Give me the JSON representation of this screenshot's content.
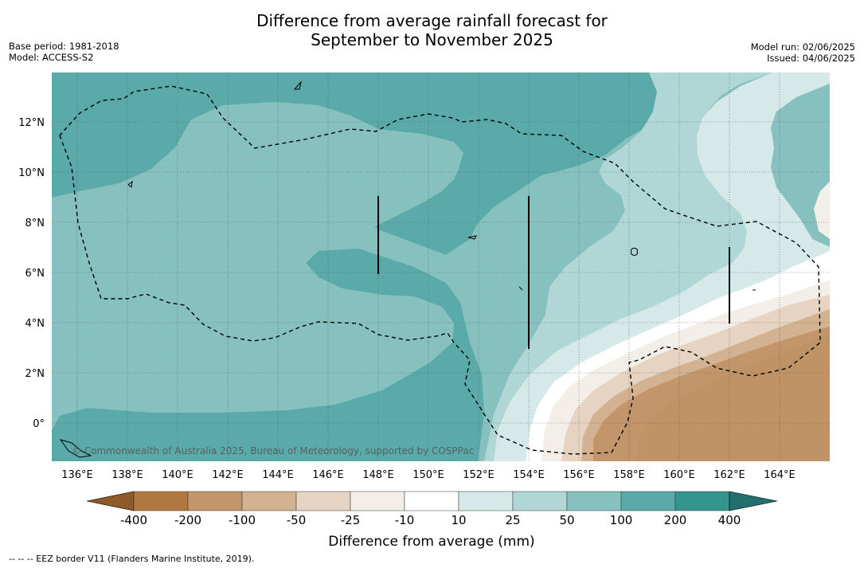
{
  "title": {
    "line1": "Difference from average rainfall forecast for",
    "line2": "September to November 2025"
  },
  "meta_left": {
    "base_period": "Base period: 1981-2018",
    "model": "Model: ACCESS-S2"
  },
  "meta_right": {
    "model_run": "Model run: 02/06/2025",
    "issued": "Issued: 04/06/2025"
  },
  "map": {
    "lon_labels": [
      "136°E",
      "138°E",
      "140°E",
      "142°E",
      "144°E",
      "146°E",
      "148°E",
      "150°E",
      "152°E",
      "154°E",
      "156°E",
      "158°E",
      "160°E",
      "162°E",
      "164°E"
    ],
    "lat_labels": [
      "12°N",
      "10°N",
      "8°N",
      "6°N",
      "4°N",
      "2°N",
      "0°"
    ],
    "watermark": "© Commonwealth of Australia 2025, Bureau of Meteorology, supported by COSPPac",
    "lon_range": [
      135,
      166
    ],
    "lat_range": [
      -1.5,
      14
    ]
  },
  "colorbar": {
    "title": "Difference from average (mm)",
    "tick_labels": [
      "-400",
      "-200",
      "-100",
      "-50",
      "-25",
      "-10",
      "10",
      "25",
      "50",
      "100",
      "200",
      "400"
    ],
    "colors": {
      "below_400": "#8f5a2a",
      "m400_m200": "#af7840",
      "m200_m100": "#c2956b",
      "m100_m50": "#d3b291",
      "m50_m25": "#e6d3c2",
      "m25_m10": "#f3eee7",
      "m10_p10": "#ffffff",
      "p10_p25": "#d5e9e8",
      "p25_p50": "#b0d7d5",
      "p50_p100": "#87c1bf",
      "p100_p200": "#5baaaa",
      "p200_p400": "#34958f",
      "above_400": "#226f6e"
    }
  },
  "footnote": "-- -- -- EEZ border V11 (Flanders Marine Institute, 2019)."
}
